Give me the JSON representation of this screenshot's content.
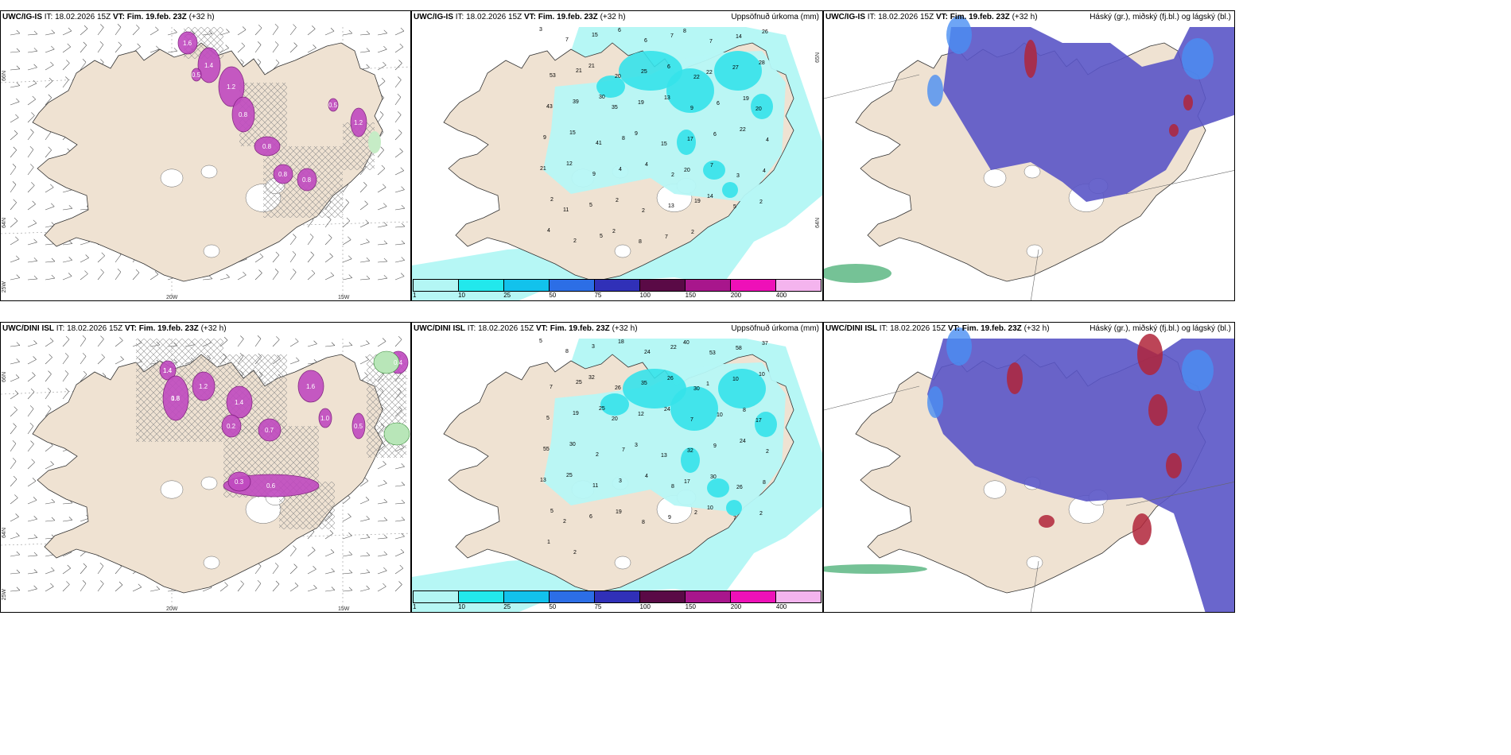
{
  "panels": [
    {
      "model": "UWC/IG-IS",
      "it": "IT: 18.02.2026 15Z",
      "vt": "VT: Fim. 19.feb. 23Z",
      "lead": "(+32 h)",
      "right": ""
    },
    {
      "model": "UWC/IG-IS",
      "it": "IT: 18.02.2026 15Z",
      "vt": "VT: Fim. 19.feb. 23Z",
      "lead": "(+32 h)",
      "right": "Uppsöfnuð úrkoma (mm)"
    },
    {
      "model": "UWC/IG-IS",
      "it": "IT: 18.02.2026 15Z",
      "vt": "VT: Fim. 19.feb. 23Z",
      "lead": "(+32 h)",
      "right": "Háský (gr.), miðský (fj.bl.) og lágský (bl.)"
    },
    {
      "model": "UWC/DINI ISL",
      "it": "IT: 18.02.2026 15Z",
      "vt": "VT: Fim. 19.feb. 23Z",
      "lead": "(+32 h)",
      "right": ""
    },
    {
      "model": "UWC/DINI ISL",
      "it": "IT: 18.02.2026 15Z",
      "vt": "VT: Fim. 19.feb. 23Z",
      "lead": "(+32 h)",
      "right": "Uppsöfnuð úrkoma (mm)"
    },
    {
      "model": "UWC/DINI ISL",
      "it": "IT: 18.02.2026 15Z",
      "vt": "VT: Fim. 19.feb. 23Z",
      "lead": "(+32 h)",
      "right": "Háský (gr.), miðský (fj.bl.) og lágský (bl.)"
    }
  ],
  "grid_labels": {
    "lat_66": "66N",
    "lat_64": "64N",
    "lat_65": "65N",
    "lon_25": "25W",
    "lon_20": "20W",
    "lon_15": "15W"
  },
  "legend": {
    "ticks": [
      "1",
      "10",
      "25",
      "50",
      "75",
      "100",
      "150",
      "200",
      "400"
    ],
    "colors": [
      "#b3f6f4",
      "#22e8ec",
      "#12c2ec",
      "#2c6ee6",
      "#3030b8",
      "#5a0a46",
      "#a8168c",
      "#ee10b8",
      "#f4b4ee"
    ]
  },
  "colors": {
    "land": "#efe2d2",
    "cloud_low": "#5a55c6",
    "cloud_mid": "#4a8ef2",
    "precip_light": "#b6f7f5",
    "precip_mid": "#35e2ea",
    "snow": "#c04ac0",
    "hatch": "#888888"
  },
  "precip_labels_top": [
    "3",
    "7",
    "15",
    "6",
    "6",
    "7",
    "8",
    "7",
    "14",
    "26",
    "53",
    "21",
    "21",
    "20",
    "25",
    "6",
    "22",
    "22",
    "27",
    "28",
    "43",
    "39",
    "30",
    "35",
    "19",
    "13",
    "9",
    "6",
    "19",
    "20",
    "9",
    "15",
    "41",
    "8",
    "9",
    "15",
    "17",
    "6",
    "22",
    "4",
    "21",
    "12",
    "9",
    "4",
    "4",
    "2",
    "20",
    "7",
    "3",
    "4",
    "2",
    "11",
    "5",
    "2",
    "2",
    "13",
    "19",
    "14",
    "5",
    "2",
    "4",
    "2",
    "5",
    "2",
    "8",
    "7",
    "2"
  ],
  "precip_labels_bottom": [
    "5",
    "8",
    "3",
    "18",
    "24",
    "22",
    "40",
    "53",
    "58",
    "37",
    "7",
    "25",
    "32",
    "26",
    "35",
    "26",
    "30",
    "1",
    "10",
    "10",
    "5",
    "19",
    "25",
    "20",
    "12",
    "24",
    "7",
    "10",
    "8",
    "17",
    "55",
    "30",
    "2",
    "7",
    "3",
    "13",
    "32",
    "9",
    "24",
    "2",
    "13",
    "25",
    "11",
    "3",
    "4",
    "8",
    "17",
    "30",
    "26",
    "8",
    "5",
    "2",
    "6",
    "19",
    "8",
    "9",
    "2",
    "10",
    "7",
    "2",
    "1",
    "2"
  ],
  "snow_labels_top": [
    "1.6",
    "1.4",
    "1.2",
    "0.8",
    "0.8",
    "0.8",
    "0.8",
    "1.2",
    "0.5",
    "0.5"
  ],
  "snow_labels_bottom": [
    "1.4",
    "1.8",
    "1.2",
    "1.4",
    "0.7",
    "1.6",
    "1.0",
    "0.5",
    "0.4",
    "0.6",
    "0.3",
    "0.2",
    "1.4",
    "0.8"
  ]
}
